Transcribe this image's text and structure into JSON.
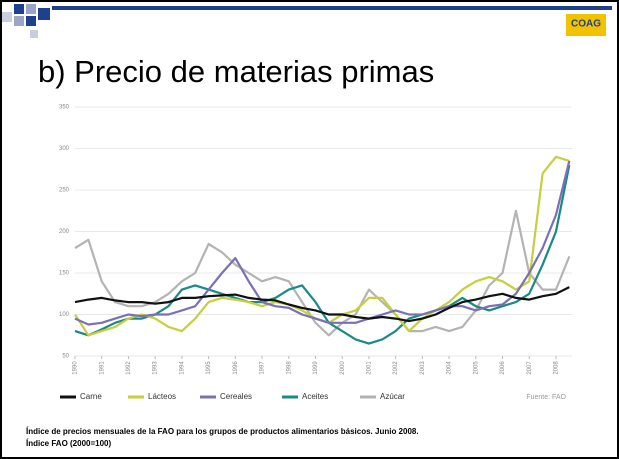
{
  "logo": "COAG",
  "chart_data": {
    "type": "line",
    "title": "b) Precio de materias primas",
    "caption": [
      "Índice de precios mensuales de la FAO para los grupos de productos alimentarios básicos. Junio 2008.",
      "Índice FAO (2000=100)"
    ],
    "source": "Fuente: FAO",
    "x": [
      1990,
      1990.5,
      1991,
      1991.5,
      1992,
      1992.5,
      1993,
      1993.5,
      1994,
      1994.5,
      1995,
      1995.5,
      1996,
      1996.5,
      1997,
      1997.5,
      1998,
      1998.5,
      1999,
      1999.5,
      2000,
      2000.5,
      2001,
      2001.5,
      2002,
      2002.5,
      2003,
      2003.5,
      2004,
      2004.5,
      2005,
      2005.5,
      2006,
      2006.5,
      2007,
      2007.5,
      2008,
      2008.5
    ],
    "xlim": [
      1990,
      2008.6
    ],
    "xticks": [
      1990,
      1991,
      1992,
      1993,
      1994,
      1995,
      1996,
      1997,
      1998,
      1999,
      2000,
      2001,
      2002,
      2003,
      2004,
      2005,
      2006,
      2007,
      2008
    ],
    "ylim": [
      50,
      350
    ],
    "yticks": [
      50,
      100,
      150,
      200,
      250,
      300,
      350
    ],
    "grid": true,
    "legend": "bottom",
    "series": [
      {
        "name": "Carne",
        "color": "#111111",
        "values": [
          115,
          118,
          120,
          117,
          115,
          115,
          113,
          115,
          120,
          120,
          122,
          123,
          124,
          120,
          118,
          117,
          112,
          108,
          105,
          100,
          100,
          97,
          95,
          97,
          95,
          92,
          95,
          100,
          108,
          115,
          118,
          122,
          125,
          120,
          118,
          122,
          125,
          133
        ]
      },
      {
        "name": "Lácteos",
        "color": "#c6cf3c",
        "values": [
          100,
          75,
          80,
          85,
          95,
          100,
          95,
          85,
          80,
          95,
          115,
          120,
          118,
          115,
          110,
          115,
          112,
          105,
          95,
          90,
          100,
          105,
          120,
          120,
          100,
          80,
          95,
          105,
          115,
          130,
          140,
          145,
          140,
          130,
          140,
          270,
          290,
          285
        ]
      },
      {
        "name": "Cereales",
        "color": "#7a70b6",
        "values": [
          95,
          88,
          90,
          95,
          100,
          98,
          100,
          100,
          105,
          110,
          130,
          150,
          168,
          140,
          115,
          110,
          108,
          100,
          95,
          90,
          90,
          90,
          95,
          100,
          105,
          100,
          100,
          105,
          110,
          110,
          105,
          110,
          112,
          125,
          150,
          180,
          220,
          285
        ]
      },
      {
        "name": "Aceites",
        "color": "#1a8a85",
        "values": [
          80,
          75,
          82,
          90,
          95,
          95,
          100,
          110,
          130,
          135,
          130,
          125,
          120,
          115,
          115,
          120,
          130,
          135,
          115,
          90,
          80,
          70,
          65,
          70,
          80,
          95,
          100,
          105,
          110,
          120,
          110,
          105,
          110,
          115,
          125,
          160,
          200,
          280
        ]
      },
      {
        "name": "Azúcar",
        "color": "#b3b3b3",
        "values": [
          180,
          190,
          140,
          115,
          110,
          110,
          115,
          125,
          140,
          150,
          185,
          175,
          160,
          150,
          140,
          145,
          140,
          115,
          90,
          75,
          90,
          100,
          130,
          115,
          100,
          80,
          80,
          85,
          80,
          85,
          105,
          135,
          150,
          225,
          150,
          130,
          130,
          170
        ]
      }
    ]
  }
}
